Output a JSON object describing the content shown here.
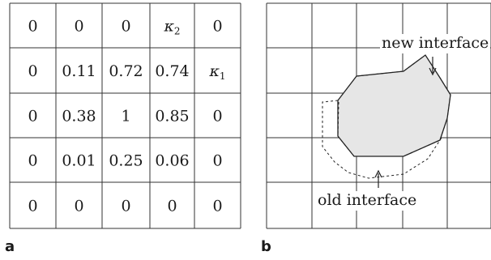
{
  "panel_a": {
    "label": "a",
    "grid": [
      [
        {
          "t": "0"
        },
        {
          "t": "0"
        },
        {
          "t": "0"
        },
        {
          "k": "κ",
          "s": "2"
        },
        {
          "t": "0"
        }
      ],
      [
        {
          "t": "0"
        },
        {
          "t": "0.11"
        },
        {
          "t": "0.72"
        },
        {
          "t": "0.74"
        },
        {
          "k": "κ",
          "s": "1"
        }
      ],
      [
        {
          "t": "0"
        },
        {
          "t": "0.38"
        },
        {
          "t": "1"
        },
        {
          "t": "0.85"
        },
        {
          "t": "0"
        }
      ],
      [
        {
          "t": "0"
        },
        {
          "t": "0.01"
        },
        {
          "t": "0.25"
        },
        {
          "t": "0.06"
        },
        {
          "t": "0"
        }
      ],
      [
        {
          "t": "0"
        },
        {
          "t": "0"
        },
        {
          "t": "0"
        },
        {
          "t": "0"
        },
        {
          "t": "0"
        }
      ]
    ]
  },
  "panel_b": {
    "label": "b",
    "new_interface_label": "new interface",
    "old_interface_label": "old interface",
    "colors": {
      "fill": "#e6e6e6",
      "line": "#222222"
    }
  }
}
